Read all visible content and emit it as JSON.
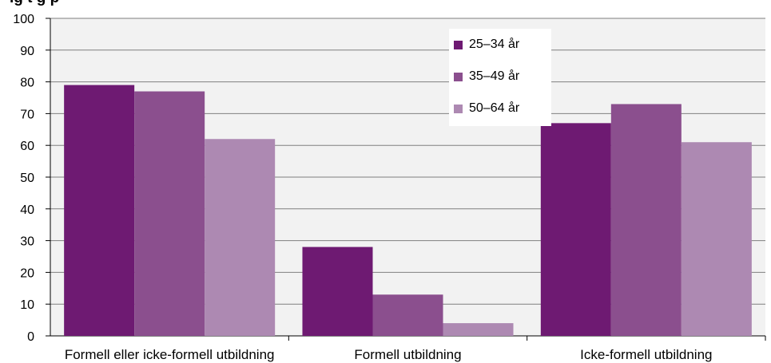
{
  "chart_data": {
    "type": "bar",
    "title": "",
    "visible_title_fragment": "ig     t     g     p",
    "categories": [
      "Formell eller icke-formell utbildning",
      "Formell utbildning",
      "Icke-formell utbildning"
    ],
    "series": [
      {
        "name": "25–34 år",
        "color": "#6e1a72",
        "values": [
          79,
          28,
          67
        ]
      },
      {
        "name": "35–49 år",
        "color": "#8b4f8e",
        "values": [
          77,
          13,
          73
        ]
      },
      {
        "name": "50–64 år",
        "color": "#ad89b2",
        "values": [
          62,
          4,
          61
        ]
      }
    ],
    "ylim": [
      0,
      100
    ],
    "yticks": [
      "0",
      "10",
      "20",
      "30",
      "40",
      "50",
      "60",
      "70",
      "80",
      "90",
      "100"
    ],
    "xlabel": "",
    "ylabel": "",
    "grid": true,
    "legend_position": "top-right-inside",
    "plot_background": "#f2f2f2",
    "gridline_color": "#7f7f7f"
  }
}
